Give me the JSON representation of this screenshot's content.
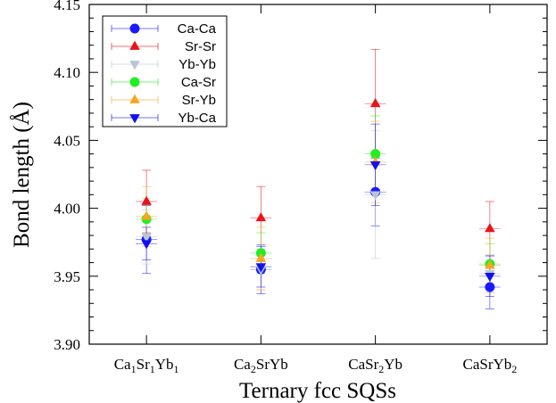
{
  "chart_data": {
    "type": "scatter",
    "xlabel": "Ternary fcc SQSs",
    "ylabel": "Bond length (Å)",
    "ylim": [
      3.9,
      4.15
    ],
    "yticks": [
      "3.90",
      "3.95",
      "4.00",
      "4.05",
      "4.10",
      "4.15"
    ],
    "categories": [
      {
        "base": "Ca",
        "sub1": "1",
        "mid": "Sr",
        "sub2": "1",
        "end": "Yb",
        "sub3": "1"
      },
      {
        "base": "Ca",
        "sub1": "2",
        "mid": "SrYb",
        "sub2": "",
        "end": "",
        "sub3": ""
      },
      {
        "base": "CaSr",
        "sub1": "2",
        "mid": "Yb",
        "sub2": "",
        "end": "",
        "sub3": ""
      },
      {
        "base": "CaSrYb",
        "sub1": "2",
        "mid": "",
        "sub2": "",
        "end": "",
        "sub3": ""
      }
    ],
    "grid": false,
    "legend_position": "top-left",
    "series": [
      {
        "name": "Ca-Ca",
        "color": "#1a1aff",
        "marker": "circle",
        "values": [
          3.977,
          3.955,
          4.012,
          3.942
        ],
        "errors": [
          0.025,
          0.018,
          0.025,
          0.016
        ]
      },
      {
        "name": "Sr-Sr",
        "color": "#e8141a",
        "marker": "triangle-up",
        "values": [
          4.005,
          3.993,
          4.077,
          3.985
        ],
        "errors": [
          0.023,
          0.023,
          0.04,
          0.02
        ]
      },
      {
        "name": "Yb-Yb",
        "color": "#b8c7d6",
        "marker": "triangle-down",
        "values": [
          3.979,
          3.955,
          4.01,
          3.952
        ],
        "errors": [
          0.02,
          0.015,
          0.047,
          0.014
        ]
      },
      {
        "name": "Ca-Sr",
        "color": "#22ee22",
        "marker": "circle",
        "values": [
          3.992,
          3.967,
          4.04,
          3.959
        ],
        "errors": [
          0.015,
          0.015,
          0.028,
          0.015
        ]
      },
      {
        "name": "Sr-Yb",
        "color": "#f5a623",
        "marker": "triangle-up",
        "values": [
          3.994,
          3.963,
          4.034,
          3.958
        ],
        "errors": [
          0.022,
          0.023,
          0.03,
          0.02
        ]
      },
      {
        "name": "Yb-Ca",
        "color": "#1111ee",
        "marker": "triangle-down",
        "values": [
          3.974,
          3.957,
          4.032,
          3.95
        ],
        "errors": [
          0.012,
          0.015,
          0.03,
          0.015
        ]
      }
    ]
  }
}
